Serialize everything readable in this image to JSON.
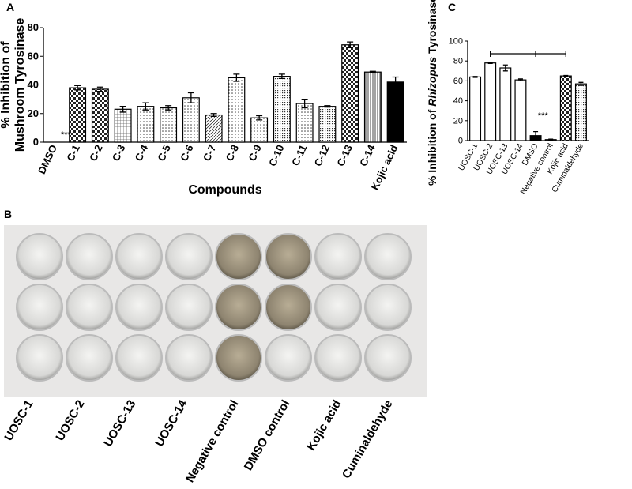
{
  "chart_data": [
    {
      "type": "bar",
      "panel": "A",
      "ylabel": [
        "% Inhibition of",
        "Mushroom Tyrosinase"
      ],
      "xlabel": "Compounds",
      "categories": [
        "DMSO",
        "C-1",
        "C-2",
        "C-3",
        "C-4",
        "C-5",
        "C-6",
        "C-7",
        "C-8",
        "C-9",
        "C-10",
        "C-11",
        "C-12",
        "C-13",
        "C-14",
        "Kojic acid"
      ],
      "values": [
        0,
        38,
        37,
        23,
        25,
        24,
        31,
        19,
        45,
        17,
        46,
        27,
        25,
        68,
        49,
        42
      ],
      "errors": [
        0,
        1.5,
        1.5,
        2,
        2.5,
        1.5,
        3.5,
        1,
        2.5,
        1.5,
        1.5,
        3,
        0.5,
        2,
        0.5,
        3.5
      ],
      "patterns": [
        "white",
        "checker",
        "checker",
        "grid",
        "dots",
        "dots",
        "dots",
        "hatch",
        "dots",
        "dots",
        "fine",
        "dots",
        "fine",
        "checker",
        "vlines",
        "black"
      ],
      "annotation": {
        "text": "***",
        "category": "DMSO"
      },
      "ylim": [
        0,
        80
      ],
      "yticks": [
        0,
        20,
        40,
        60,
        80
      ]
    },
    {
      "type": "bar",
      "panel": "C",
      "ylabel": [
        "% Inhibition of ",
        "Rhizopus",
        " Tyrosinase"
      ],
      "categories": [
        "UOSC-1",
        "UOSC-2",
        "UOSC-13",
        "UOSC-14",
        "DMSO",
        "Negative control",
        "Kojic acid",
        "Cuminaldehyde"
      ],
      "values": [
        64,
        78,
        73,
        61,
        5,
        1,
        65,
        57
      ],
      "errors": [
        0.5,
        0.5,
        3,
        1,
        4,
        0.5,
        0.5,
        1.5
      ],
      "patterns": [
        "white",
        "white",
        "white",
        "white",
        "black",
        "white",
        "checker",
        "fine"
      ],
      "annotation": {
        "text": "***",
        "category": "Negative control"
      },
      "ylim": [
        0,
        100
      ],
      "yticks": [
        0,
        20,
        40,
        60,
        80,
        100
      ]
    }
  ],
  "photo": {
    "panel": "B",
    "labels": [
      "UOSC-1",
      "UOSC-2",
      "UOSC-13",
      "UOSC-14",
      "Negative control",
      "DMSO control",
      "Kojic acid",
      "Cuminaldehyde"
    ]
  }
}
